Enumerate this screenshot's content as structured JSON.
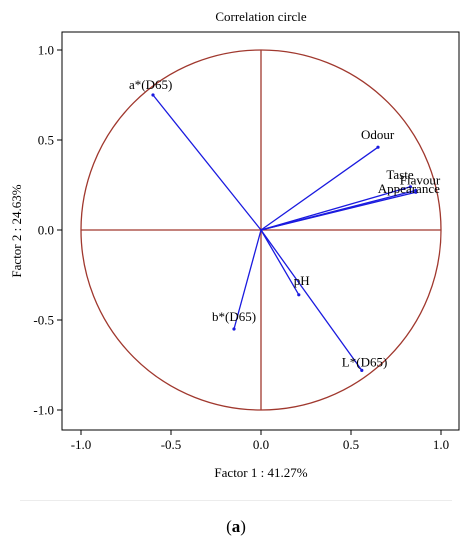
{
  "chart_data": {
    "type": "scatter",
    "subtype": "correlation-circle",
    "title": "Correlation circle",
    "xlabel": "Factor 1 : 41.27%",
    "ylabel": "Factor 2 : 24.63%",
    "xlim": [
      -1.1,
      1.1
    ],
    "ylim": [
      -1.1,
      1.1
    ],
    "xticks": [
      "-1.0",
      "-0.5",
      "0.0",
      "0.5",
      "1.0"
    ],
    "yticks": [
      "1.0",
      "0.5",
      "0.0",
      "-0.5",
      "-1.0"
    ],
    "circle_radius": 1.0,
    "grid": false,
    "points": [
      {
        "label": "a*(D65)",
        "x": -0.6,
        "y": 0.75
      },
      {
        "label": "Odour",
        "x": 0.65,
        "y": 0.46
      },
      {
        "label": "Taste",
        "x": 0.83,
        "y": 0.24
      },
      {
        "label": "Flavour",
        "x": 0.86,
        "y": 0.22
      },
      {
        "label": "Appearance",
        "x": 0.86,
        "y": 0.21
      },
      {
        "label": "pH",
        "x": 0.21,
        "y": -0.36
      },
      {
        "label": "b*(D65)",
        "x": -0.15,
        "y": -0.55
      },
      {
        "label": "L*(D65)",
        "x": 0.56,
        "y": -0.78
      }
    ],
    "colors": {
      "vectors": "#1a1adf",
      "circle": "#a0382e",
      "axes": "#000000"
    }
  },
  "caption": {
    "letter": "a"
  }
}
